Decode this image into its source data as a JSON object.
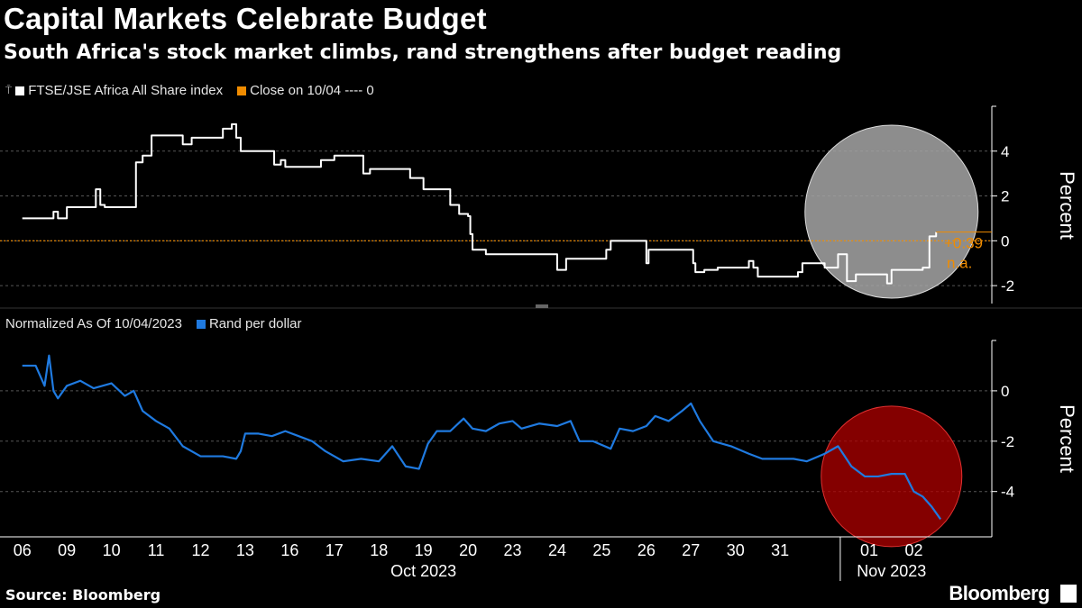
{
  "header": {
    "title": "Capital Markets Celebrate Budget",
    "subtitle": "South Africa's stock market climbs, rand strengthens after budget reading"
  },
  "footer": {
    "source": "Source: Bloomberg",
    "brand": "Bloomberg"
  },
  "colors": {
    "white_series": "#ffffff",
    "orange": "#f08c00",
    "blue": "#1f7ae0",
    "grey_circle": "#a6a6a6",
    "red_circle": "#b00000",
    "grid": "#555555"
  },
  "chart_data": [
    {
      "type": "line",
      "legend": [
        {
          "label": "FTSE/JSE Africa All Share index",
          "color": "#ffffff"
        },
        {
          "label": "Close on 10/04 ---- 0",
          "color": "#f08c00"
        }
      ],
      "ylabel": "Percent",
      "ylim": [
        -2.8,
        6
      ],
      "yticks": [
        "4",
        "2",
        "0",
        "-2"
      ],
      "reference_line": 0,
      "last_value_label": "+0.39",
      "na_label": "n.a.",
      "series": [
        {
          "name": "FTSE/JSE Africa All Share index",
          "points": [
            [
              0,
              1.0
            ],
            [
              0.6,
              1.0
            ],
            [
              0.7,
              1.3
            ],
            [
              0.8,
              1.0
            ],
            [
              1.0,
              1.5
            ],
            [
              1.5,
              1.5
            ],
            [
              1.65,
              2.3
            ],
            [
              1.75,
              1.6
            ],
            [
              1.85,
              1.5
            ],
            [
              2.5,
              1.5
            ],
            [
              2.55,
              3.5
            ],
            [
              2.7,
              3.8
            ],
            [
              2.9,
              4.7
            ],
            [
              3.5,
              4.7
            ],
            [
              3.6,
              4.3
            ],
            [
              3.8,
              4.6
            ],
            [
              4.3,
              4.6
            ],
            [
              4.5,
              5.0
            ],
            [
              4.7,
              5.2
            ],
            [
              4.8,
              4.6
            ],
            [
              4.9,
              4.0
            ],
            [
              5.5,
              4.0
            ],
            [
              5.65,
              3.4
            ],
            [
              5.8,
              3.6
            ],
            [
              5.9,
              3.3
            ],
            [
              6.5,
              3.3
            ],
            [
              6.7,
              3.6
            ],
            [
              7.0,
              3.8
            ],
            [
              7.5,
              3.8
            ],
            [
              7.65,
              3.0
            ],
            [
              7.8,
              3.2
            ],
            [
              7.9,
              3.2
            ],
            [
              8.6,
              3.2
            ],
            [
              8.7,
              2.8
            ],
            [
              9.0,
              2.3
            ],
            [
              9.5,
              2.3
            ],
            [
              9.6,
              1.6
            ],
            [
              9.8,
              1.2
            ],
            [
              10.0,
              1.1
            ],
            [
              10.05,
              0.3
            ],
            [
              10.1,
              -0.4
            ],
            [
              10.4,
              -0.6
            ],
            [
              11.0,
              -0.6
            ],
            [
              11.9,
              -0.6
            ],
            [
              12.0,
              -1.3
            ],
            [
              12.2,
              -0.8
            ],
            [
              12.4,
              -0.8
            ],
            [
              13.0,
              -0.8
            ],
            [
              13.1,
              -0.4
            ],
            [
              13.2,
              0.0
            ],
            [
              13.8,
              0.0
            ],
            [
              14.0,
              -1.0
            ],
            [
              14.05,
              -0.4
            ],
            [
              14.2,
              -0.4
            ],
            [
              15.0,
              -0.4
            ],
            [
              15.05,
              -1.0
            ],
            [
              15.1,
              -1.4
            ],
            [
              15.3,
              -1.3
            ],
            [
              15.6,
              -1.2
            ],
            [
              16.2,
              -1.2
            ],
            [
              16.3,
              -0.9
            ],
            [
              16.4,
              -1.2
            ],
            [
              16.5,
              -1.6
            ],
            [
              17.3,
              -1.6
            ],
            [
              17.4,
              -1.4
            ],
            [
              17.5,
              -1.0
            ],
            [
              18.0,
              -1.2
            ],
            [
              18.3,
              -0.6
            ],
            [
              18.5,
              -1.8
            ],
            [
              18.7,
              -1.5
            ],
            [
              19.0,
              -1.5
            ],
            [
              19.3,
              -1.5
            ],
            [
              19.4,
              -1.9
            ],
            [
              19.5,
              -1.3
            ],
            [
              20.0,
              -1.3
            ],
            [
              20.2,
              -1.2
            ],
            [
              20.35,
              0.2
            ],
            [
              20.5,
              0.39
            ]
          ]
        }
      ]
    },
    {
      "type": "line",
      "legend": [
        {
          "label": "Normalized As Of 10/04/2023",
          "color": ""
        },
        {
          "label": "Rand per dollar",
          "color": "#1f7ae0"
        }
      ],
      "ylabel": "Percent",
      "ylim": [
        -5.8,
        2
      ],
      "yticks": [
        "0",
        "-2",
        "-4"
      ],
      "series": [
        {
          "name": "Rand per dollar",
          "points": [
            [
              0,
              1.0
            ],
            [
              0.3,
              1.0
            ],
            [
              0.5,
              0.2
            ],
            [
              0.6,
              1.4
            ],
            [
              0.7,
              0.0
            ],
            [
              0.8,
              -0.3
            ],
            [
              1.0,
              0.2
            ],
            [
              1.3,
              0.4
            ],
            [
              1.6,
              0.1
            ],
            [
              2.0,
              0.3
            ],
            [
              2.3,
              -0.2
            ],
            [
              2.5,
              0.0
            ],
            [
              2.7,
              -0.8
            ],
            [
              3.0,
              -1.2
            ],
            [
              3.3,
              -1.5
            ],
            [
              3.6,
              -2.2
            ],
            [
              4.0,
              -2.6
            ],
            [
              4.5,
              -2.6
            ],
            [
              4.8,
              -2.7
            ],
            [
              4.9,
              -2.4
            ],
            [
              5.0,
              -1.7
            ],
            [
              5.3,
              -1.7
            ],
            [
              5.6,
              -1.8
            ],
            [
              5.9,
              -1.6
            ],
            [
              6.2,
              -1.8
            ],
            [
              6.5,
              -2.0
            ],
            [
              6.8,
              -2.4
            ],
            [
              7.2,
              -2.8
            ],
            [
              7.6,
              -2.7
            ],
            [
              8.0,
              -2.8
            ],
            [
              8.3,
              -2.2
            ],
            [
              8.6,
              -3.0
            ],
            [
              8.9,
              -3.1
            ],
            [
              9.1,
              -2.1
            ],
            [
              9.3,
              -1.6
            ],
            [
              9.6,
              -1.6
            ],
            [
              9.9,
              -1.1
            ],
            [
              10.1,
              -1.5
            ],
            [
              10.4,
              -1.6
            ],
            [
              10.7,
              -1.3
            ],
            [
              11.0,
              -1.2
            ],
            [
              11.2,
              -1.5
            ],
            [
              11.6,
              -1.3
            ],
            [
              12.0,
              -1.4
            ],
            [
              12.3,
              -1.2
            ],
            [
              12.5,
              -2.0
            ],
            [
              12.8,
              -2.0
            ],
            [
              13.2,
              -2.3
            ],
            [
              13.4,
              -1.5
            ],
            [
              13.7,
              -1.6
            ],
            [
              14.0,
              -1.4
            ],
            [
              14.2,
              -1.0
            ],
            [
              14.5,
              -1.2
            ],
            [
              14.8,
              -0.8
            ],
            [
              15.0,
              -0.5
            ],
            [
              15.2,
              -1.2
            ],
            [
              15.5,
              -2.0
            ],
            [
              15.9,
              -2.2
            ],
            [
              16.3,
              -2.5
            ],
            [
              16.6,
              -2.7
            ],
            [
              16.9,
              -2.7
            ],
            [
              17.3,
              -2.7
            ],
            [
              17.6,
              -2.8
            ],
            [
              18.0,
              -2.5
            ],
            [
              18.3,
              -2.2
            ],
            [
              18.6,
              -3.0
            ],
            [
              18.9,
              -3.4
            ],
            [
              19.2,
              -3.4
            ],
            [
              19.5,
              -3.3
            ],
            [
              19.8,
              -3.3
            ],
            [
              20.0,
              -4.0
            ],
            [
              20.2,
              -4.2
            ],
            [
              20.4,
              -4.6
            ],
            [
              20.6,
              -5.1
            ]
          ]
        }
      ]
    }
  ],
  "x_axis": {
    "range": [
      -0.5,
      21.75
    ],
    "ticks": [
      {
        "x": 0,
        "label": "06"
      },
      {
        "x": 1,
        "label": "09"
      },
      {
        "x": 2,
        "label": "10"
      },
      {
        "x": 3,
        "label": "11"
      },
      {
        "x": 4,
        "label": "12"
      },
      {
        "x": 5,
        "label": "13"
      },
      {
        "x": 6,
        "label": "16"
      },
      {
        "x": 7,
        "label": "17"
      },
      {
        "x": 8,
        "label": "18"
      },
      {
        "x": 9,
        "label": "19"
      },
      {
        "x": 10,
        "label": "20"
      },
      {
        "x": 11,
        "label": "23"
      },
      {
        "x": 12,
        "label": "24"
      },
      {
        "x": 13,
        "label": "25"
      },
      {
        "x": 14,
        "label": "26"
      },
      {
        "x": 15,
        "label": "27"
      },
      {
        "x": 16,
        "label": "30"
      },
      {
        "x": 17,
        "label": "31"
      },
      {
        "x": 19,
        "label": "01"
      },
      {
        "x": 20,
        "label": "02"
      }
    ],
    "month_labels": [
      {
        "x": 9,
        "label": "Oct 2023"
      },
      {
        "x": 19.5,
        "label": "Nov 2023"
      }
    ],
    "month_divider": 18.35
  },
  "annotations": {
    "grey_circle": {
      "x": 19.5,
      "y": 1.3,
      "note": "highlight"
    },
    "red_circle": {
      "x": 19.5,
      "y": -3.4,
      "note": "highlight"
    }
  }
}
